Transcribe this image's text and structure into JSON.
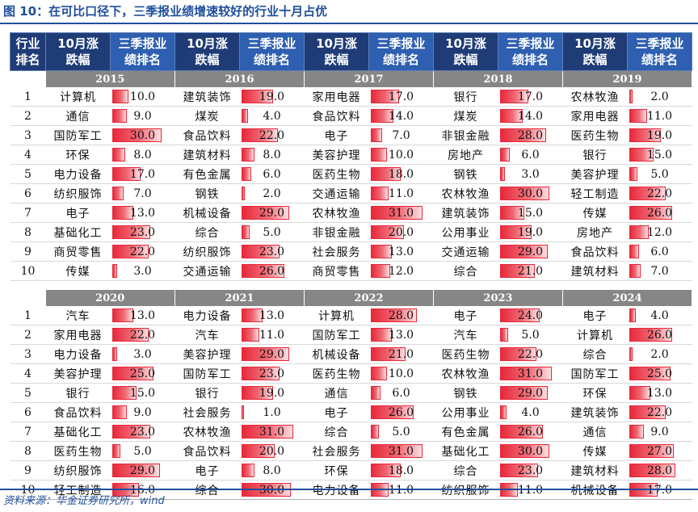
{
  "title": "图 10：在可比口径下，三季报业绩增速较好的行业十月占优",
  "source": "资料来源：华金证券研究所，wind",
  "header": {
    "rank_label": "行业\n排名",
    "industry_label": "10月涨跌幅",
    "perf_label": "三季报业绩排名"
  },
  "colors": {
    "header_dark": "#1f3c77",
    "header_blue": "#2e5fb0",
    "year_bar": "#868686",
    "bar_red": "#e8283a"
  },
  "bar_scale_max": 31,
  "sections": [
    {
      "years": [
        "2015",
        "2016",
        "2017",
        "2018",
        "2019"
      ],
      "rows": [
        {
          "rank": "1",
          "cells": [
            [
              "计算机",
              "10.0"
            ],
            [
              "建筑装饰",
              "19.0"
            ],
            [
              "家用电器",
              "17.0"
            ],
            [
              "银行",
              "17.0"
            ],
            [
              "农林牧渔",
              "2.0"
            ]
          ]
        },
        {
          "rank": "2",
          "cells": [
            [
              "通信",
              "9.0"
            ],
            [
              "煤炭",
              "4.0"
            ],
            [
              "食品饮料",
              "14.0"
            ],
            [
              "煤炭",
              "14.0"
            ],
            [
              "家用电器",
              "11.0"
            ]
          ]
        },
        {
          "rank": "3",
          "cells": [
            [
              "国防军工",
              "30.0"
            ],
            [
              "食品饮料",
              "22.0"
            ],
            [
              "电子",
              "7.0"
            ],
            [
              "非银金融",
              "28.0"
            ],
            [
              "医药生物",
              "19.0"
            ]
          ]
        },
        {
          "rank": "4",
          "cells": [
            [
              "环保",
              "8.0"
            ],
            [
              "建筑材料",
              "8.0"
            ],
            [
              "美容护理",
              "10.0"
            ],
            [
              "房地产",
              "6.0"
            ],
            [
              "银行",
              "15.0"
            ]
          ]
        },
        {
          "rank": "5",
          "cells": [
            [
              "电力设备",
              "17.0"
            ],
            [
              "有色金属",
              "6.0"
            ],
            [
              "医药生物",
              "18.0"
            ],
            [
              "钢铁",
              "3.0"
            ],
            [
              "美容护理",
              "5.0"
            ]
          ]
        },
        {
          "rank": "6",
          "cells": [
            [
              "纺织服饰",
              "7.0"
            ],
            [
              "钢铁",
              "2.0"
            ],
            [
              "交通运输",
              "11.0"
            ],
            [
              "农林牧渔",
              "30.0"
            ],
            [
              "轻工制造",
              "22.0"
            ]
          ]
        },
        {
          "rank": "7",
          "cells": [
            [
              "电子",
              "13.0"
            ],
            [
              "机械设备",
              "29.0"
            ],
            [
              "农林牧渔",
              "31.0"
            ],
            [
              "建筑装饰",
              "15.0"
            ],
            [
              "传媒",
              "26.0"
            ]
          ]
        },
        {
          "rank": "8",
          "cells": [
            [
              "基础化工",
              "23.0"
            ],
            [
              "综合",
              "5.0"
            ],
            [
              "非银金融",
              "20.0"
            ],
            [
              "公用事业",
              "19.0"
            ],
            [
              "房地产",
              "12.0"
            ]
          ]
        },
        {
          "rank": "9",
          "cells": [
            [
              "商贸零售",
              "22.0"
            ],
            [
              "纺织服饰",
              "23.0"
            ],
            [
              "社会服务",
              "13.0"
            ],
            [
              "交通运输",
              "29.0"
            ],
            [
              "食品饮料",
              "6.0"
            ]
          ]
        },
        {
          "rank": "10",
          "cells": [
            [
              "传媒",
              "3.0"
            ],
            [
              "交通运输",
              "26.0"
            ],
            [
              "商贸零售",
              "12.0"
            ],
            [
              "综合",
              "21.0"
            ],
            [
              "建筑材料",
              "7.0"
            ]
          ]
        }
      ]
    },
    {
      "years": [
        "2020",
        "2021",
        "2022",
        "2023",
        "2024"
      ],
      "rows": [
        {
          "rank": "1",
          "cells": [
            [
              "汽车",
              "13.0"
            ],
            [
              "电力设备",
              "13.0"
            ],
            [
              "计算机",
              "28.0"
            ],
            [
              "电子",
              "24.0"
            ],
            [
              "电子",
              "4.0"
            ]
          ]
        },
        {
          "rank": "2",
          "cells": [
            [
              "家用电器",
              "22.0"
            ],
            [
              "汽车",
              "11.0"
            ],
            [
              "国防军工",
              "13.0"
            ],
            [
              "汽车",
              "5.0"
            ],
            [
              "计算机",
              "26.0"
            ]
          ]
        },
        {
          "rank": "3",
          "cells": [
            [
              "电力设备",
              "3.0"
            ],
            [
              "美容护理",
              "29.0"
            ],
            [
              "机械设备",
              "21.0"
            ],
            [
              "医药生物",
              "22.0"
            ],
            [
              "综合",
              "2.0"
            ]
          ]
        },
        {
          "rank": "4",
          "cells": [
            [
              "美容护理",
              "25.0"
            ],
            [
              "国防军工",
              "23.0"
            ],
            [
              "医药生物",
              "10.0"
            ],
            [
              "农林牧渔",
              "31.0"
            ],
            [
              "国防军工",
              "25.0"
            ]
          ]
        },
        {
          "rank": "5",
          "cells": [
            [
              "银行",
              "15.0"
            ],
            [
              "银行",
              "19.0"
            ],
            [
              "通信",
              "6.0"
            ],
            [
              "钢铁",
              "29.0"
            ],
            [
              "环保",
              "13.0"
            ]
          ]
        },
        {
          "rank": "6",
          "cells": [
            [
              "食品饮料",
              "9.0"
            ],
            [
              "社会服务",
              "1.0"
            ],
            [
              "电子",
              "26.0"
            ],
            [
              "公用事业",
              "4.0"
            ],
            [
              "建筑装饰",
              "22.0"
            ]
          ]
        },
        {
          "rank": "7",
          "cells": [
            [
              "基础化工",
              "23.0"
            ],
            [
              "农林牧渔",
              "31.0"
            ],
            [
              "综合",
              "5.0"
            ],
            [
              "有色金属",
              "26.0"
            ],
            [
              "通信",
              "9.0"
            ]
          ]
        },
        {
          "rank": "8",
          "cells": [
            [
              "医药生物",
              "5.0"
            ],
            [
              "食品饮料",
              "20.0"
            ],
            [
              "社会服务",
              "31.0"
            ],
            [
              "基础化工",
              "30.0"
            ],
            [
              "传媒",
              "27.0"
            ]
          ]
        },
        {
          "rank": "9",
          "cells": [
            [
              "纺织服饰",
              "29.0"
            ],
            [
              "电子",
              "8.0"
            ],
            [
              "环保",
              "18.0"
            ],
            [
              "综合",
              "23.0"
            ],
            [
              "建筑材料",
              "28.0"
            ]
          ]
        },
        {
          "rank": "10",
          "cells": [
            [
              "轻工制造",
              "16.0"
            ],
            [
              "综合",
              "30.0"
            ],
            [
              "电力设备",
              "11.0"
            ],
            [
              "纺织服饰",
              "11.0"
            ],
            [
              "机械设备",
              "17.0"
            ]
          ]
        }
      ]
    }
  ]
}
